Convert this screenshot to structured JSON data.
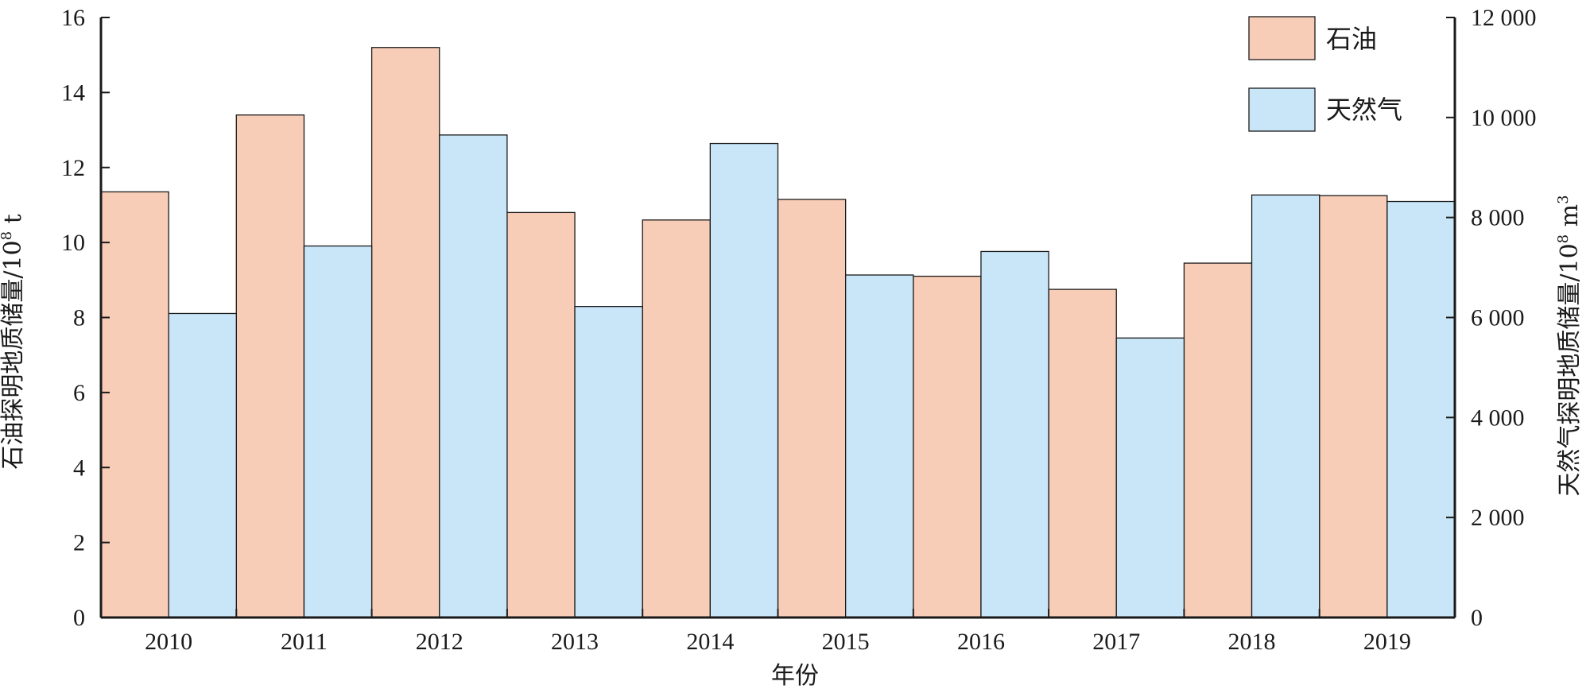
{
  "chart_data": {
    "type": "bar",
    "categories": [
      "2010",
      "2011",
      "2012",
      "2013",
      "2014",
      "2015",
      "2016",
      "2017",
      "2018",
      "2019"
    ],
    "series": [
      {
        "name": "石油",
        "axis": "left",
        "color": "#f8cdb8",
        "values": [
          11.35,
          13.4,
          15.2,
          10.8,
          10.6,
          11.15,
          9.1,
          8.75,
          9.45,
          11.25
        ]
      },
      {
        "name": "天然气",
        "axis": "right",
        "color": "#c8e6f8",
        "values": [
          6080,
          7430,
          9650,
          6220,
          9480,
          6850,
          7320,
          5590,
          8450,
          8320
        ]
      }
    ],
    "xlabel": "年份",
    "ylabel_left": {
      "main": "石油探明地质储量/10",
      "sup": "8",
      "unit": " t"
    },
    "ylabel_right": {
      "main": "天然气探明地质储量/10",
      "sup": "8",
      "unit": " m",
      "unit_sup": "3"
    },
    "ylim_left": [
      0,
      16
    ],
    "yticks_left": [
      0,
      2,
      4,
      6,
      8,
      10,
      12,
      14,
      16
    ],
    "ylim_right": [
      0,
      12000
    ],
    "yticks_right": [
      0,
      2000,
      4000,
      6000,
      8000,
      10000,
      12000
    ],
    "yticks_right_labels": [
      "0",
      "2 000",
      "4 000",
      "6 000",
      "8 000",
      "10 000",
      "12 000"
    ],
    "legend_position": "top-right",
    "grid": false
  }
}
